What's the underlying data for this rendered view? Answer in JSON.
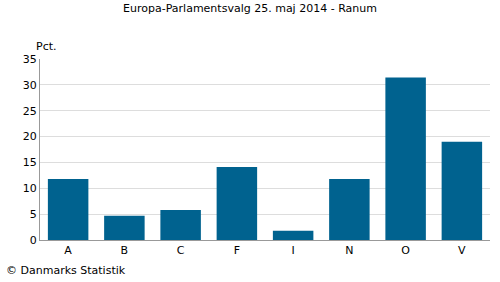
{
  "chart_data": {
    "type": "bar",
    "title": "Europa-Parlamentsvalg 25. maj 2014 - Ranum",
    "y_label": "Pct.",
    "categories": [
      "A",
      "B",
      "C",
      "F",
      "I",
      "N",
      "O",
      "V"
    ],
    "values": [
      11.8,
      4.7,
      5.8,
      14.1,
      1.8,
      11.8,
      31.4,
      19.0
    ],
    "color": "#00628f",
    "ylim": [
      0,
      35
    ],
    "yticks": [
      0,
      5,
      10,
      15,
      20,
      25,
      30,
      35
    ],
    "grid": true,
    "annotations": [
      "© Danmarks Statistik"
    ]
  }
}
